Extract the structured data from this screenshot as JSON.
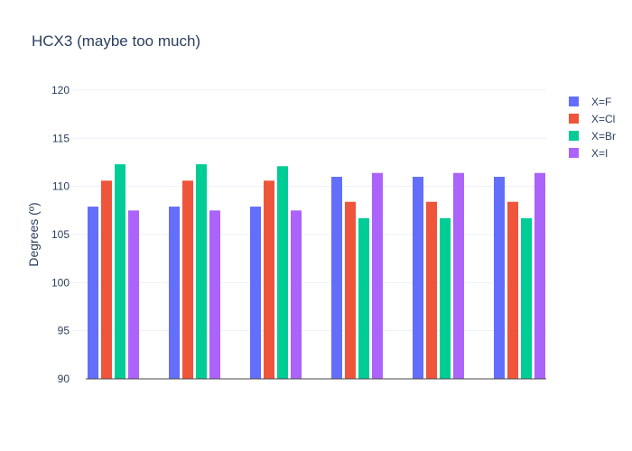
{
  "chart_data": {
    "type": "bar",
    "title": "HCX3 (maybe too much)",
    "xlabel": "",
    "ylabel": "Degrees (º)",
    "ylim": [
      90,
      120
    ],
    "yticks": [
      90,
      95,
      100,
      105,
      110,
      115,
      120
    ],
    "categories": [
      "",
      "",
      "",
      "",
      "",
      ""
    ],
    "series": [
      {
        "name": "X=F",
        "color": "#636efa",
        "values": [
          107.9,
          107.9,
          107.9,
          111.0,
          111.0,
          111.0
        ]
      },
      {
        "name": "X=Cl",
        "color": "#ef553b",
        "values": [
          110.6,
          110.6,
          110.6,
          108.4,
          108.4,
          108.4
        ]
      },
      {
        "name": "X=Br",
        "color": "#00cc96",
        "values": [
          112.3,
          112.3,
          112.1,
          106.7,
          106.7,
          106.7
        ]
      },
      {
        "name": "X=I",
        "color": "#ab63fa",
        "values": [
          107.5,
          107.5,
          107.5,
          111.4,
          111.4,
          111.4
        ]
      }
    ],
    "grid": true,
    "legend_position": "top-right"
  }
}
